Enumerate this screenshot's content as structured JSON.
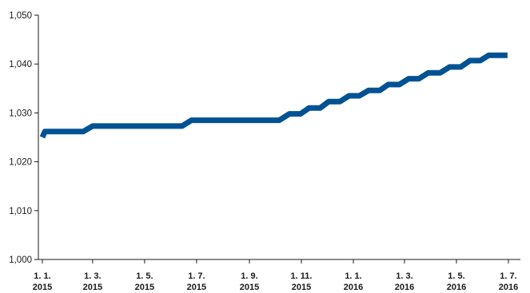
{
  "chart_data": {
    "type": "line",
    "title": "",
    "xlabel": "",
    "ylabel": "",
    "ylim": [
      1000,
      1050
    ],
    "y_ticks": [
      "1,000",
      "1,010",
      "1,020",
      "1,030",
      "1,040",
      "1,050"
    ],
    "x_ticks": [
      {
        "line1": "1. 1.",
        "line2": "2015",
        "date": "2015-01-01"
      },
      {
        "line1": "1. 3.",
        "line2": "2015",
        "date": "2015-03-01"
      },
      {
        "line1": "1. 5.",
        "line2": "2015",
        "date": "2015-05-01"
      },
      {
        "line1": "1. 7.",
        "line2": "2015",
        "date": "2015-07-01"
      },
      {
        "line1": "1. 9.",
        "line2": "2015",
        "date": "2015-09-01"
      },
      {
        "line1": "1. 11.",
        "line2": "2015",
        "date": "2015-11-01"
      },
      {
        "line1": "1. 1.",
        "line2": "2016",
        "date": "2016-01-01"
      },
      {
        "line1": "1. 3.",
        "line2": "2016",
        "date": "2016-03-01"
      },
      {
        "line1": "1. 5.",
        "line2": "2016",
        "date": "2016-05-01"
      },
      {
        "line1": "1. 7.",
        "line2": "2016",
        "date": "2016-07-01"
      }
    ],
    "grid": false,
    "legend": "none",
    "series": [
      {
        "color": "#005293",
        "x": [
          "2015-01-01",
          "2015-01-04",
          "2015-02-18",
          "2015-03-01",
          "2015-06-14",
          "2015-06-25",
          "2015-10-06",
          "2015-10-18",
          "2015-10-31",
          "2015-11-10",
          "2015-11-23",
          "2015-12-03",
          "2015-12-16",
          "2015-12-27",
          "2016-01-08",
          "2016-01-19",
          "2016-02-01",
          "2016-02-11",
          "2016-02-24",
          "2016-03-06",
          "2016-03-18",
          "2016-03-29",
          "2016-04-12",
          "2016-04-23",
          "2016-05-06",
          "2016-05-17",
          "2016-05-29",
          "2016-06-08",
          "2016-06-20",
          "2016-06-30"
        ],
        "y": [
          1025,
          1026.2,
          1026.2,
          1027.3,
          1027.3,
          1028.5,
          1028.5,
          1029.8,
          1029.8,
          1031,
          1031,
          1032.3,
          1032.3,
          1033.5,
          1033.5,
          1034.6,
          1034.6,
          1035.8,
          1035.8,
          1037,
          1037,
          1038.2,
          1038.2,
          1039.4,
          1039.4,
          1040.7,
          1040.7,
          1041.8,
          1041.8,
          1041.8
        ]
      }
    ]
  }
}
